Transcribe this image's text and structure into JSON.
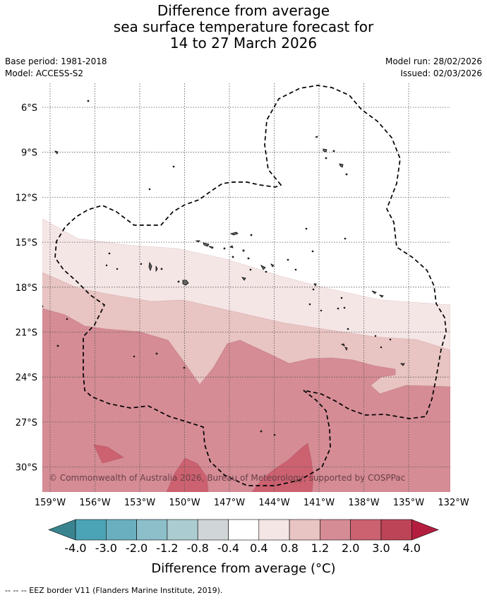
{
  "title": {
    "line1": "Difference from average",
    "line2": "sea surface temperature forecast for",
    "line3": "14 to 27 March 2026"
  },
  "meta": {
    "base_period": "Base period: 1981-2018",
    "model": "Model: ACCESS-S2",
    "model_run": "Model run: 28/02/2026",
    "issued": "Issued: 02/03/2026"
  },
  "map": {
    "lon_labels": [
      "159°W",
      "156°W",
      "153°W",
      "150°W",
      "147°W",
      "144°W",
      "141°W",
      "138°W",
      "135°W",
      "132°W"
    ],
    "lat_labels": [
      "6°S",
      "9°S",
      "12°S",
      "15°S",
      "18°S",
      "21°S",
      "24°S",
      "27°S",
      "30°S"
    ],
    "copyright": "© Commonwealth of Australia 2026, Bureau of Meteorology, supported by COSPPac"
  },
  "colorbar": {
    "ticks": [
      "-4.0",
      "-3.0",
      "-2.0",
      "-1.2",
      "-0.8",
      "-0.4",
      "0.4",
      "0.8",
      "1.2",
      "2.0",
      "3.0",
      "4.0"
    ],
    "colors": [
      "#4ba4b6",
      "#6aafbf",
      "#8cbfca",
      "#abcdd1",
      "#d0d5d8",
      "#ffffff",
      "#f5e6e6",
      "#e8c4c2",
      "#d58c95",
      "#cc6170",
      "#bd4456"
    ],
    "under_color": "#3a8490",
    "over_color": "#b31e3f",
    "label": "Difference from average (°C)"
  },
  "footer": "-- -- -- EEZ border V11 (Flanders Marine Institute, 2019)."
}
